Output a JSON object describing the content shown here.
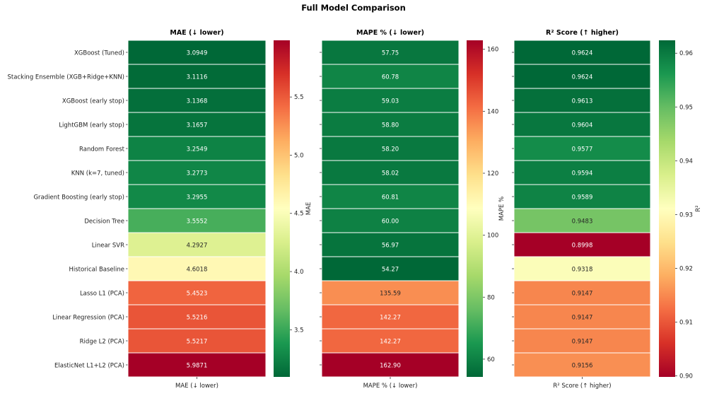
{
  "figure_title": "Full Model Comparison",
  "models": [
    "XGBoost (Tuned)",
    "Stacking Ensemble (XGB+Ridge+KNN)",
    "XGBoost (early stop)",
    "LightGBM (early stop)",
    "Random Forest",
    "KNN (k=7, tuned)",
    "Gradient Boosting (early stop)",
    "Decision Tree",
    "Linear SVR",
    "Historical Baseline",
    "Lasso L1 (PCA)",
    "Linear Regression (PCA)",
    "Ridge L2 (PCA)",
    "ElasticNet L1+L2 (PCA)"
  ],
  "chart_data": [
    {
      "type": "heatmap",
      "title": "MAE (↓ lower)",
      "xlabel": "MAE (↓ lower)",
      "colorbar_label": "MAE",
      "colormap": "RdYlGn_r",
      "vmin": 3.0949,
      "vmax": 5.9871,
      "colorbar_ticks": [
        "3.5",
        "4.0",
        "4.5",
        "5.0",
        "5.5"
      ],
      "values": [
        3.0949,
        3.1116,
        3.1368,
        3.1657,
        3.2549,
        3.2773,
        3.2955,
        3.5552,
        4.2927,
        4.6018,
        5.4523,
        5.5216,
        5.5217,
        5.9871
      ],
      "labels": [
        "3.0949",
        "3.1116",
        "3.1368",
        "3.1657",
        "3.2549",
        "3.2773",
        "3.2955",
        "3.5552",
        "4.2927",
        "4.6018",
        "5.4523",
        "5.5216",
        "5.5217",
        "5.9871"
      ]
    },
    {
      "type": "heatmap",
      "title": "MAPE % (↓ lower)",
      "xlabel": "MAPE % (↓ lower)",
      "colorbar_label": "MAPE %",
      "colormap": "RdYlGn_r",
      "vmin": 54.27,
      "vmax": 162.9,
      "colorbar_ticks": [
        "60",
        "80",
        "100",
        "120",
        "140",
        "160"
      ],
      "values": [
        57.75,
        60.78,
        59.03,
        58.8,
        58.2,
        58.02,
        60.81,
        60.0,
        56.97,
        54.27,
        135.59,
        142.27,
        142.27,
        162.9
      ],
      "labels": [
        "57.75",
        "60.78",
        "59.03",
        "58.80",
        "58.20",
        "58.02",
        "60.81",
        "60.00",
        "56.97",
        "54.27",
        "135.59",
        "142.27",
        "142.27",
        "162.90"
      ]
    },
    {
      "type": "heatmap",
      "title": "R² Score (↑ higher)",
      "xlabel": "R² Score (↑ higher)",
      "colorbar_label": "R²",
      "colormap": "RdYlGn",
      "vmin": 0.8998,
      "vmax": 0.9624,
      "colorbar_ticks": [
        "0.90",
        "0.91",
        "0.92",
        "0.93",
        "0.94",
        "0.95",
        "0.96"
      ],
      "values": [
        0.9624,
        0.9624,
        0.9613,
        0.9604,
        0.9577,
        0.9594,
        0.9589,
        0.9483,
        0.8998,
        0.9318,
        0.9147,
        0.9147,
        0.9147,
        0.9156
      ],
      "labels": [
        "0.9624",
        "0.9624",
        "0.9613",
        "0.9604",
        "0.9577",
        "0.9594",
        "0.9589",
        "0.9483",
        "0.8998",
        "0.9318",
        "0.9147",
        "0.9147",
        "0.9147",
        "0.9156"
      ]
    }
  ],
  "colors": {
    "red": "#a50026",
    "yellow": "#ffffbf",
    "green": "#006837"
  }
}
